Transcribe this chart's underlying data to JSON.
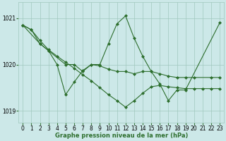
{
  "title": "Graphe pression niveau de la mer (hPa)",
  "background_color": "#cce8e8",
  "grid_color": "#a0c8be",
  "line_color": "#2d6e2d",
  "ylim": [
    1018.75,
    1021.35
  ],
  "yticks": [
    1019,
    1020,
    1021
  ],
  "xlim": [
    -0.5,
    23.5
  ],
  "xticks": [
    0,
    1,
    2,
    3,
    4,
    5,
    6,
    7,
    8,
    9,
    10,
    11,
    12,
    13,
    14,
    15,
    16,
    17,
    18,
    19,
    20,
    21,
    22,
    23
  ],
  "series1_x": [
    0,
    1,
    2,
    3,
    5,
    6,
    7,
    8,
    9,
    10,
    11,
    12,
    13,
    14,
    15,
    16,
    17,
    18,
    19,
    20,
    22,
    23
  ],
  "series1_y": [
    1020.85,
    1020.75,
    1020.45,
    1020.3,
    1020.0,
    1020.0,
    1019.85,
    1020.0,
    1019.97,
    1019.9,
    1019.85,
    1019.85,
    1019.8,
    1019.85,
    1019.85,
    1019.8,
    1019.75,
    1019.72,
    1019.72,
    1019.72,
    1019.72,
    1019.72
  ],
  "series2_x": [
    0,
    2,
    3,
    4,
    5,
    6,
    7,
    8,
    9,
    10,
    11,
    12,
    13,
    14,
    15,
    16,
    17,
    18,
    19,
    23
  ],
  "series2_y": [
    1020.85,
    1020.45,
    1020.3,
    1020.0,
    1019.35,
    1019.62,
    1019.87,
    1020.0,
    1020.0,
    1020.45,
    1020.88,
    1021.05,
    1020.57,
    1020.18,
    1019.85,
    1019.58,
    1019.22,
    1019.45,
    1019.45,
    1020.9
  ],
  "series3_x": [
    0,
    1,
    2,
    3,
    4,
    5,
    6,
    7,
    8,
    9,
    10,
    11,
    12,
    13,
    14,
    15,
    16,
    17,
    18,
    19,
    20,
    21,
    22,
    23
  ],
  "series3_y": [
    1020.85,
    1020.75,
    1020.52,
    1020.32,
    1020.18,
    1020.05,
    1019.92,
    1019.78,
    1019.65,
    1019.5,
    1019.35,
    1019.22,
    1019.08,
    1019.22,
    1019.38,
    1019.52,
    1019.55,
    1019.52,
    1019.5,
    1019.48,
    1019.48,
    1019.48,
    1019.48,
    1019.48
  ]
}
